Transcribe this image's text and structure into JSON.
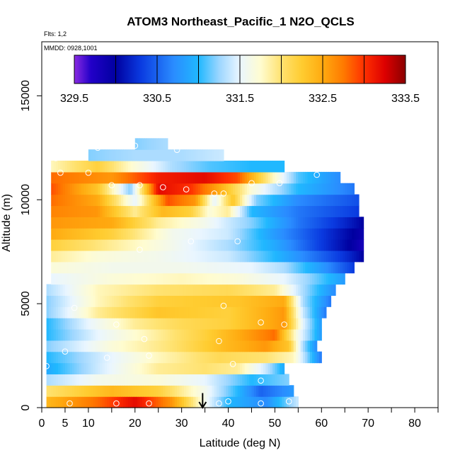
{
  "chart_data": {
    "type": "heatmap",
    "title": "ATOM3 Northeast_Pacific_1 N2O_QCLS",
    "subtitle_flights": "Flts: 1,2",
    "subtitle_dates": "MMDD: 0928,1001",
    "xlabel": "Latitude (deg N)",
    "ylabel": "Altitude (m)",
    "xlim": [
      0,
      85
    ],
    "ylim": [
      0,
      17600
    ],
    "x_ticks": [
      0,
      5,
      10,
      20,
      30,
      40,
      50,
      60,
      70,
      80
    ],
    "x_minor_ticks": [
      0,
      5,
      10,
      15,
      20,
      25,
      30,
      35,
      40,
      45,
      50,
      55,
      60,
      65,
      70,
      75,
      80,
      85
    ],
    "y_ticks": [
      0,
      5000,
      10000,
      15000
    ],
    "grid": false,
    "colorbar": {
      "range": [
        329.5,
        333.5
      ],
      "labels": [
        "329.5",
        "330.5",
        "331.5",
        "332.5",
        "333.5"
      ],
      "label_values": [
        329.5,
        330.5,
        331.5,
        332.5,
        333.5
      ],
      "boundaries": [
        329.5,
        330.0,
        330.5,
        331.0,
        331.5,
        332.0,
        332.5,
        333.0,
        333.5
      ],
      "color_stops": [
        {
          "v": 329.5,
          "c": "#8a2be2"
        },
        {
          "v": 329.7,
          "c": "#2200c8"
        },
        {
          "v": 330.0,
          "c": "#0000a0"
        },
        {
          "v": 330.3,
          "c": "#0a3ae0"
        },
        {
          "v": 330.7,
          "c": "#2a8cff"
        },
        {
          "v": 331.0,
          "c": "#20b8ff"
        },
        {
          "v": 331.25,
          "c": "#9cd6ff"
        },
        {
          "v": 331.5,
          "c": "#eaf6ff"
        },
        {
          "v": 331.75,
          "c": "#fffcd0"
        },
        {
          "v": 332.0,
          "c": "#ffe270"
        },
        {
          "v": 332.25,
          "c": "#ffcc30"
        },
        {
          "v": 332.5,
          "c": "#ffaa10"
        },
        {
          "v": 332.75,
          "c": "#ff7a00"
        },
        {
          "v": 333.0,
          "c": "#ff3000"
        },
        {
          "v": 333.25,
          "c": "#dd0000"
        },
        {
          "v": 333.5,
          "c": "#8a0000"
        }
      ]
    },
    "altitude_bins": [
      0,
      540,
      1080,
      1620,
      2160,
      2700,
      3240,
      3780,
      4320,
      4860,
      5400,
      5940,
      6480,
      7020,
      7560,
      8100,
      8640,
      9180,
      9720,
      10260,
      10800,
      11340,
      11880,
      12420,
      12960
    ],
    "profiles": [
      {
        "bottom": 0,
        "top": 540,
        "lat_min": 1,
        "lat_max": 55,
        "pts": [
          [
            1,
            332.4
          ],
          [
            12,
            332.8
          ],
          [
            20,
            333.2
          ],
          [
            28,
            332.6
          ],
          [
            35,
            331.6
          ],
          [
            40,
            331.0
          ],
          [
            48,
            330.7
          ],
          [
            55,
            331.4
          ]
        ]
      },
      {
        "bottom": 540,
        "top": 1080,
        "lat_min": 1,
        "lat_max": 54,
        "pts": [
          [
            1,
            332.0
          ],
          [
            15,
            332.4
          ],
          [
            25,
            332.2
          ],
          [
            35,
            331.6
          ],
          [
            42,
            331.0
          ],
          [
            47,
            330.5
          ],
          [
            54,
            330.8
          ]
        ]
      },
      {
        "bottom": 1080,
        "top": 1620,
        "lat_min": 1,
        "lat_max": 53,
        "pts": [
          [
            1,
            331.3
          ],
          [
            12,
            331.6
          ],
          [
            25,
            331.7
          ],
          [
            35,
            331.5
          ],
          [
            45,
            331.0
          ],
          [
            53,
            331.2
          ]
        ]
      },
      {
        "bottom": 1620,
        "top": 2160,
        "lat_min": 1,
        "lat_max": 52,
        "pts": [
          [
            1,
            330.9
          ],
          [
            12,
            331.4
          ],
          [
            25,
            331.9
          ],
          [
            35,
            332.0
          ],
          [
            42,
            331.9
          ],
          [
            48,
            331.4
          ],
          [
            52,
            330.9
          ]
        ]
      },
      {
        "bottom": 2160,
        "top": 2700,
        "lat_min": 1,
        "lat_max": 60,
        "pts": [
          [
            1,
            331.0
          ],
          [
            15,
            331.5
          ],
          [
            25,
            331.8
          ],
          [
            38,
            332.1
          ],
          [
            48,
            332.0
          ],
          [
            54,
            331.8
          ],
          [
            58,
            331.0
          ],
          [
            60,
            330.6
          ]
        ]
      },
      {
        "bottom": 2700,
        "top": 3240,
        "lat_min": 1,
        "lat_max": 59,
        "pts": [
          [
            1,
            331.2
          ],
          [
            15,
            331.7
          ],
          [
            28,
            332.0
          ],
          [
            40,
            332.4
          ],
          [
            48,
            332.6
          ],
          [
            53,
            332.3
          ],
          [
            56,
            331.3
          ],
          [
            59,
            330.7
          ]
        ]
      },
      {
        "bottom": 3240,
        "top": 3780,
        "lat_min": 1,
        "lat_max": 60,
        "pts": [
          [
            1,
            331.0
          ],
          [
            12,
            331.5
          ],
          [
            22,
            331.8
          ],
          [
            35,
            332.2
          ],
          [
            45,
            332.6
          ],
          [
            50,
            332.8
          ],
          [
            55,
            331.6
          ],
          [
            60,
            330.8
          ]
        ]
      },
      {
        "bottom": 3780,
        "top": 4320,
        "lat_min": 1,
        "lat_max": 60,
        "pts": [
          [
            1,
            331.0
          ],
          [
            10,
            331.5
          ],
          [
            20,
            331.9
          ],
          [
            30,
            332.1
          ],
          [
            40,
            332.2
          ],
          [
            52,
            332.6
          ],
          [
            56,
            331.5
          ],
          [
            60,
            330.8
          ]
        ]
      },
      {
        "bottom": 4320,
        "top": 4860,
        "lat_min": 1,
        "lat_max": 61,
        "pts": [
          [
            1,
            331.2
          ],
          [
            12,
            331.9
          ],
          [
            25,
            332.3
          ],
          [
            40,
            332.2
          ],
          [
            52,
            332.6
          ],
          [
            56,
            331.4
          ],
          [
            61,
            330.6
          ]
        ]
      },
      {
        "bottom": 4860,
        "top": 5400,
        "lat_min": 1,
        "lat_max": 62,
        "pts": [
          [
            1,
            331.2
          ],
          [
            12,
            331.8
          ],
          [
            25,
            332.2
          ],
          [
            42,
            332.3
          ],
          [
            52,
            332.5
          ],
          [
            56,
            331.3
          ],
          [
            62,
            330.6
          ]
        ]
      },
      {
        "bottom": 5400,
        "top": 5940,
        "lat_min": 1,
        "lat_max": 63,
        "pts": [
          [
            1,
            331.3
          ],
          [
            12,
            331.8
          ],
          [
            25,
            332.0
          ],
          [
            40,
            332.1
          ],
          [
            50,
            331.9
          ],
          [
            56,
            331.3
          ],
          [
            63,
            330.7
          ]
        ]
      },
      {
        "bottom": 5940,
        "top": 6480,
        "lat_min": 2,
        "lat_max": 65,
        "pts": [
          [
            2,
            331.5
          ],
          [
            15,
            331.7
          ],
          [
            30,
            331.8
          ],
          [
            42,
            331.7
          ],
          [
            52,
            331.5
          ],
          [
            58,
            331.2
          ],
          [
            65,
            330.8
          ]
        ]
      },
      {
        "bottom": 6480,
        "top": 7020,
        "lat_min": 2,
        "lat_max": 67,
        "pts": [
          [
            2,
            331.7
          ],
          [
            15,
            331.6
          ],
          [
            30,
            331.6
          ],
          [
            45,
            331.5
          ],
          [
            52,
            331.3
          ],
          [
            60,
            330.8
          ],
          [
            67,
            330.3
          ]
        ]
      },
      {
        "bottom": 7020,
        "top": 7560,
        "lat_min": 2,
        "lat_max": 69,
        "pts": [
          [
            2,
            331.9
          ],
          [
            12,
            331.7
          ],
          [
            25,
            331.6
          ],
          [
            40,
            331.4
          ],
          [
            50,
            331.0
          ],
          [
            60,
            330.5
          ],
          [
            66,
            330.2
          ],
          [
            69,
            330.0
          ]
        ]
      },
      {
        "bottom": 7560,
        "top": 8100,
        "lat_min": 2,
        "lat_max": 69,
        "pts": [
          [
            2,
            332.2
          ],
          [
            15,
            331.9
          ],
          [
            28,
            331.6
          ],
          [
            40,
            331.3
          ],
          [
            50,
            330.9
          ],
          [
            60,
            330.3
          ],
          [
            66,
            330.0
          ],
          [
            69,
            329.8
          ]
        ]
      },
      {
        "bottom": 8100,
        "top": 8640,
        "lat_min": 2,
        "lat_max": 69,
        "pts": [
          [
            2,
            332.5
          ],
          [
            15,
            332.2
          ],
          [
            28,
            331.6
          ],
          [
            40,
            331.4
          ],
          [
            50,
            330.8
          ],
          [
            60,
            330.3
          ],
          [
            69,
            329.9
          ]
        ]
      },
      {
        "bottom": 8640,
        "top": 9180,
        "lat_min": 2,
        "lat_max": 69,
        "pts": [
          [
            2,
            332.6
          ],
          [
            15,
            332.5
          ],
          [
            25,
            331.9
          ],
          [
            35,
            331.6
          ],
          [
            45,
            331.2
          ],
          [
            55,
            330.6
          ],
          [
            65,
            330.2
          ],
          [
            69,
            330.0
          ]
        ]
      },
      {
        "bottom": 9180,
        "top": 9720,
        "lat_min": 2,
        "lat_max": 68,
        "pts": [
          [
            2,
            332.7
          ],
          [
            12,
            332.6
          ],
          [
            20,
            331.9
          ],
          [
            26,
            332.4
          ],
          [
            32,
            332.2
          ],
          [
            36,
            331.7
          ],
          [
            40,
            331.9
          ],
          [
            45,
            331.0
          ],
          [
            55,
            330.6
          ],
          [
            68,
            330.3
          ]
        ]
      },
      {
        "bottom": 9720,
        "top": 10260,
        "lat_min": 2,
        "lat_max": 68,
        "pts": [
          [
            2,
            332.8
          ],
          [
            12,
            332.5
          ],
          [
            20,
            331.5
          ],
          [
            27,
            332.9
          ],
          [
            33,
            332.6
          ],
          [
            37,
            331.5
          ],
          [
            41,
            332.3
          ],
          [
            46,
            331.2
          ],
          [
            55,
            330.7
          ],
          [
            68,
            330.4
          ]
        ]
      },
      {
        "bottom": 10260,
        "top": 10800,
        "lat_min": 2,
        "lat_max": 67,
        "pts": [
          [
            2,
            332.9
          ],
          [
            12,
            332.3
          ],
          [
            19,
            331.2
          ],
          [
            25,
            333.2
          ],
          [
            32,
            333.0
          ],
          [
            38,
            332.5
          ],
          [
            45,
            331.7
          ],
          [
            55,
            331.0
          ],
          [
            67,
            330.6
          ]
        ]
      },
      {
        "bottom": 10800,
        "top": 11340,
        "lat_min": 2,
        "lat_max": 64,
        "pts": [
          [
            2,
            332.8
          ],
          [
            15,
            332.6
          ],
          [
            25,
            333.1
          ],
          [
            35,
            333.2
          ],
          [
            42,
            332.9
          ],
          [
            48,
            332.0
          ],
          [
            55,
            331.1
          ],
          [
            64,
            330.7
          ]
        ]
      },
      {
        "bottom": 11340,
        "top": 11880,
        "lat_min": 2,
        "lat_max": 52,
        "pts": [
          [
            2,
            331.8
          ],
          [
            12,
            332.2
          ],
          [
            20,
            331.7
          ],
          [
            28,
            331.3
          ],
          [
            36,
            331.1
          ],
          [
            45,
            331.0
          ],
          [
            52,
            331.0
          ]
        ]
      },
      {
        "bottom": 11880,
        "top": 12420,
        "lat_min": 10,
        "lat_max": 39,
        "pts": [
          [
            10,
            331.2
          ],
          [
            20,
            331.3
          ],
          [
            30,
            331.3
          ],
          [
            39,
            331.4
          ]
        ]
      },
      {
        "bottom": 12420,
        "top": 12960,
        "lat_min": 20,
        "lat_max": 27,
        "pts": [
          [
            20,
            331.2
          ],
          [
            27,
            331.3
          ]
        ]
      }
    ],
    "observations": [
      [
        6,
        200
      ],
      [
        16,
        200
      ],
      [
        23,
        200
      ],
      [
        38,
        200
      ],
      [
        40,
        300
      ],
      [
        47,
        200
      ],
      [
        53,
        300
      ],
      [
        47,
        1300
      ],
      [
        1,
        2000
      ],
      [
        5,
        2700
      ],
      [
        14,
        2400
      ],
      [
        22,
        3300
      ],
      [
        23,
        2500
      ],
      [
        38,
        3200
      ],
      [
        41,
        2100
      ],
      [
        16,
        4000
      ],
      [
        47,
        4100
      ],
      [
        52,
        4000
      ],
      [
        7,
        4800
      ],
      [
        39,
        4900
      ],
      [
        21,
        7600
      ],
      [
        32,
        8000
      ],
      [
        42,
        8000
      ],
      [
        4,
        11300
      ],
      [
        10,
        11300
      ],
      [
        15,
        10700
      ],
      [
        21,
        10700
      ],
      [
        26,
        10600
      ],
      [
        31,
        10500
      ],
      [
        37,
        10300
      ],
      [
        39,
        10300
      ],
      [
        45,
        10800
      ],
      [
        51,
        10800
      ],
      [
        59,
        11200
      ],
      [
        65,
        11000
      ],
      [
        69,
        10900
      ],
      [
        70,
        7000
      ],
      [
        12,
        12500
      ],
      [
        20,
        12600
      ],
      [
        29,
        12400
      ],
      [
        3,
        12000
      ]
    ],
    "arrow": {
      "lat": 34.5,
      "alt_top": 700,
      "alt_bottom": 0
    }
  }
}
